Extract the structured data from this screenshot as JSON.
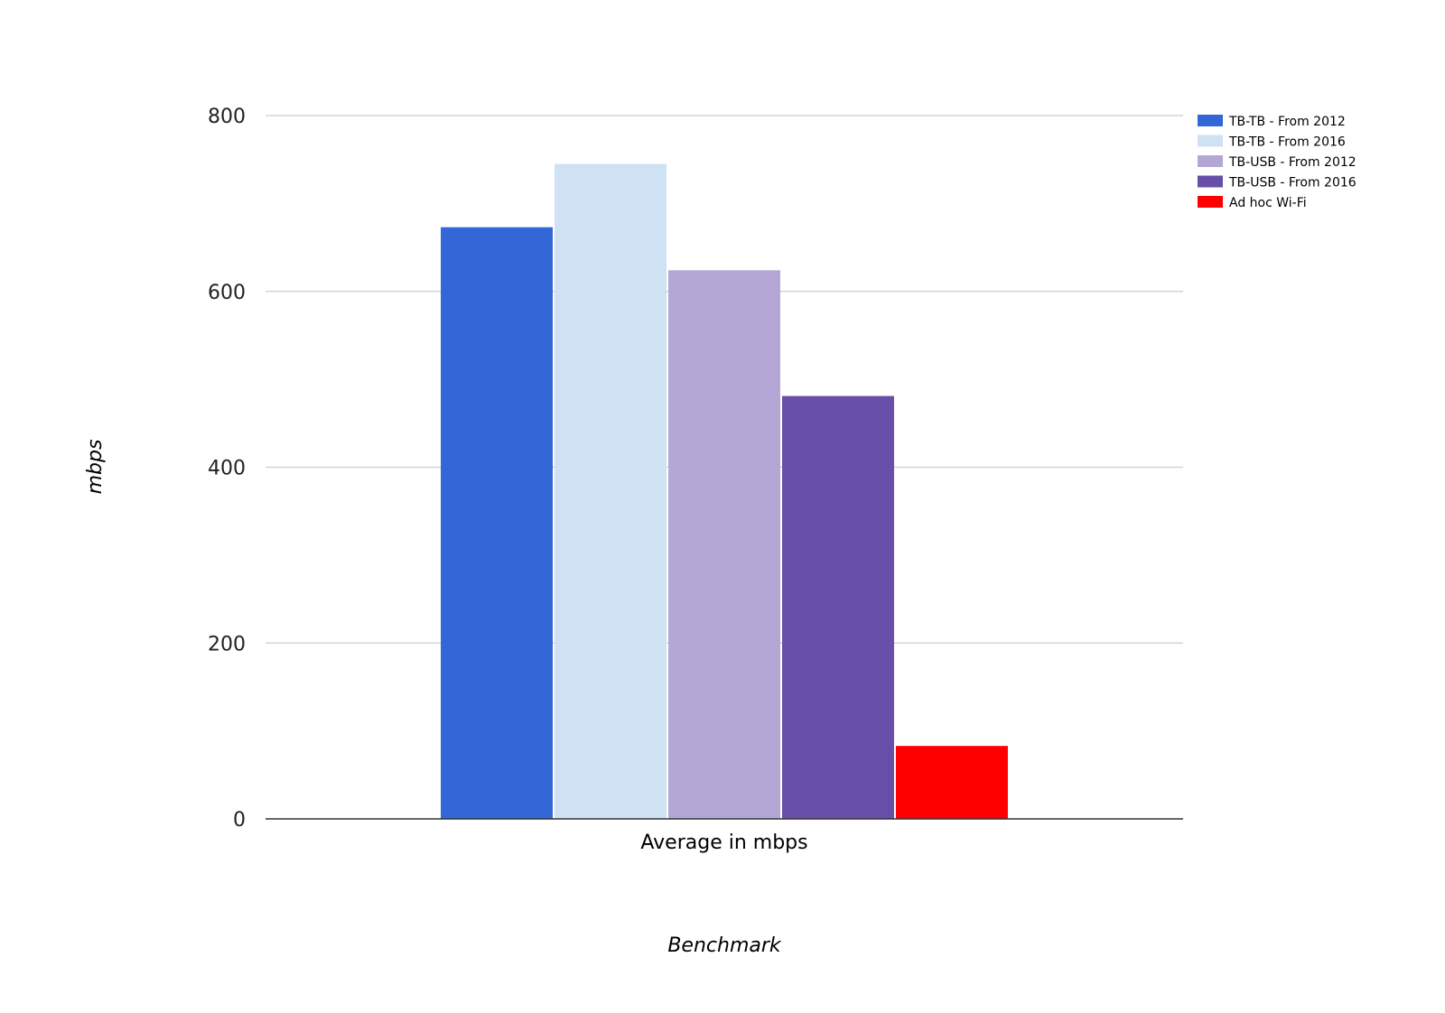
{
  "chart_data": {
    "type": "bar",
    "title": "",
    "xlabel": "Benchmark",
    "ylabel": "mbps",
    "categories": [
      "Average in mbps"
    ],
    "ylim": [
      0,
      800
    ],
    "yticks": [
      0,
      200,
      400,
      600,
      800
    ],
    "grid": true,
    "legend_position": "right",
    "series": [
      {
        "name": "TB-TB - From 2012",
        "values": [
          673
        ],
        "color": "#3366d6"
      },
      {
        "name": "TB-TB - From 2016",
        "values": [
          745
        ],
        "color": "#cfe2f3"
      },
      {
        "name": "TB-USB - From 2012",
        "values": [
          624
        ],
        "color": "#b4a7d6"
      },
      {
        "name": "TB-USB - From 2016",
        "values": [
          481
        ],
        "color": "#674ea7"
      },
      {
        "name": "Ad hoc Wi-Fi",
        "values": [
          83
        ],
        "color": "#ff0000"
      }
    ]
  }
}
